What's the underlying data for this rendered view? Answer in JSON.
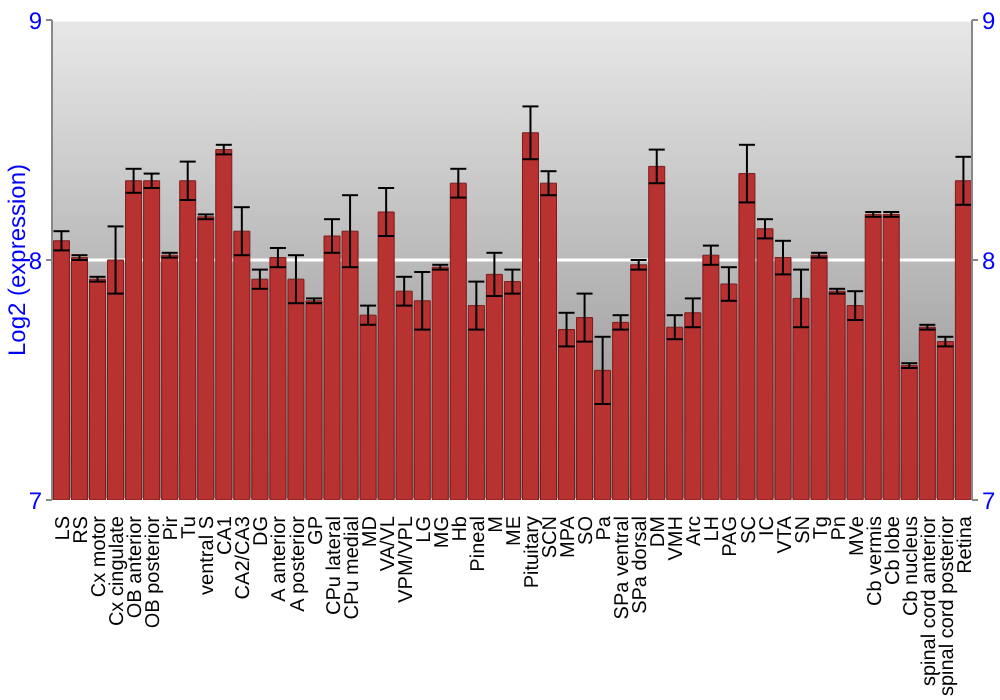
{
  "chart_data": {
    "type": "bar",
    "categories": [
      "LS",
      "RS",
      "Cx motor",
      "Cx cingulate",
      "OB anterior",
      "OB posterior",
      "Pir",
      "Tu",
      "ventral S",
      "CA1",
      "CA2/CA3",
      "DG",
      "A anterior",
      "A posterior",
      "GP",
      "CPu lateral",
      "CPu medial",
      "MD",
      "VA/VL",
      "VPM/VPL",
      "LG",
      "MG",
      "Hb",
      "Pineal",
      "M",
      "ME",
      "Pituitary",
      "SCN",
      "MPA",
      "SO",
      "Pa",
      "SPa ventral",
      "SPa dorsal",
      "DM",
      "VMH",
      "Arc",
      "LH",
      "PAG",
      "SC",
      "IC",
      "VTA",
      "SN",
      "Tg",
      "Pn",
      "MVe",
      "Cb vermis",
      "Cb lobe",
      "Cb nucleus",
      "spinal cord anterior",
      "spinal cord posterior",
      "Retina"
    ],
    "values": [
      8.08,
      8.01,
      7.92,
      8.0,
      8.33,
      8.33,
      8.02,
      8.33,
      8.18,
      8.46,
      8.12,
      7.92,
      8.01,
      7.92,
      7.83,
      8.1,
      8.12,
      7.77,
      8.2,
      7.87,
      7.83,
      7.97,
      8.32,
      7.81,
      7.94,
      7.91,
      8.53,
      8.32,
      7.71,
      7.76,
      7.54,
      7.74,
      7.98,
      8.39,
      7.72,
      7.78,
      8.02,
      7.9,
      8.36,
      8.13,
      8.01,
      7.84,
      8.02,
      7.87,
      7.81,
      8.19,
      8.19,
      7.56,
      7.72,
      7.66,
      8.33
    ],
    "errors": [
      0.04,
      0.01,
      0.01,
      0.14,
      0.05,
      0.03,
      0.01,
      0.08,
      0.01,
      0.02,
      0.1,
      0.04,
      0.04,
      0.1,
      0.01,
      0.07,
      0.15,
      0.04,
      0.1,
      0.06,
      0.12,
      0.01,
      0.06,
      0.1,
      0.09,
      0.05,
      0.11,
      0.05,
      0.07,
      0.1,
      0.14,
      0.03,
      0.02,
      0.07,
      0.05,
      0.06,
      0.04,
      0.07,
      0.12,
      0.04,
      0.07,
      0.12,
      0.01,
      0.01,
      0.06,
      0.01,
      0.01,
      0.01,
      0.01,
      0.02,
      0.1
    ],
    "color": "#b83232",
    "ylabel": "Log2 (expression)",
    "ylim": [
      7,
      9
    ],
    "yticks": [
      7,
      8,
      9
    ],
    "y2lim": [
      7,
      9
    ],
    "y2ticks": [
      7,
      8,
      9
    ],
    "grid": "y"
  }
}
